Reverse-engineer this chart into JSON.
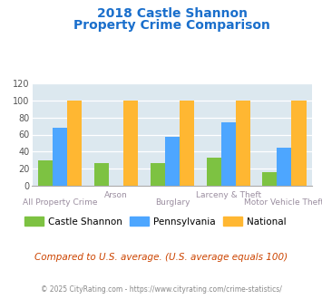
{
  "title_line1": "2018 Castle Shannon",
  "title_line2": "Property Crime Comparison",
  "title_color": "#1a6fcc",
  "categories": [
    "All Property Crime",
    "Arson",
    "Burglary",
    "Larceny & Theft",
    "Motor Vehicle Theft"
  ],
  "castle_shannon": [
    30,
    26,
    26,
    33,
    16
  ],
  "pennsylvania": [
    68,
    0,
    57,
    74,
    45
  ],
  "national": [
    100,
    100,
    100,
    100,
    100
  ],
  "color_castle": "#7dc242",
  "color_pa": "#4da6ff",
  "color_national": "#ffb732",
  "ylim": [
    0,
    120
  ],
  "yticks": [
    0,
    20,
    40,
    60,
    80,
    100,
    120
  ],
  "bg_color": "#dce8ef",
  "footnote": "Compared to U.S. average. (U.S. average equals 100)",
  "copyright": "© 2025 CityRating.com - https://www.cityrating.com/crime-statistics/",
  "legend_labels": [
    "Castle Shannon",
    "Pennsylvania",
    "National"
  ],
  "xlabel_color": "#9b8ea0",
  "footnote_color": "#cc4400",
  "copyright_color": "#888888"
}
